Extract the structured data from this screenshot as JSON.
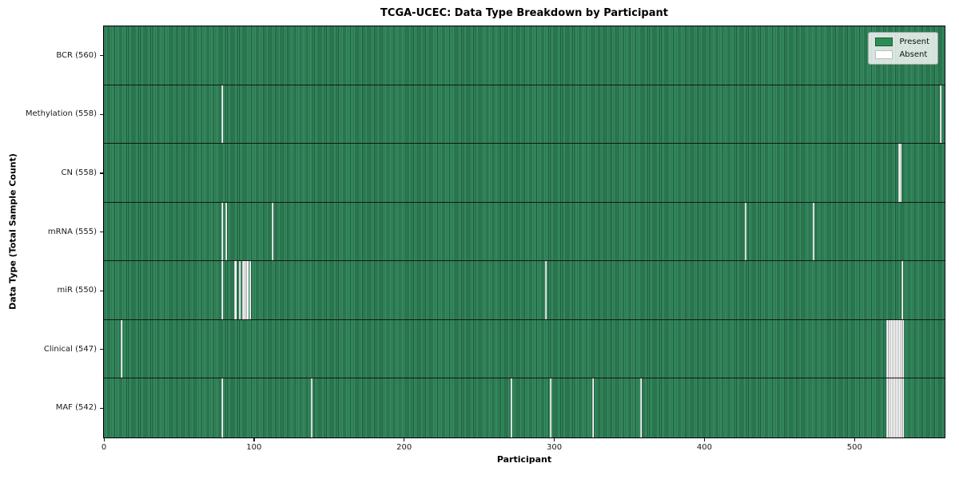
{
  "figure": {
    "title": "TCGA-UCEC: Data Type Breakdown by Participant",
    "xlabel": "Participant",
    "ylabel": "Data Type (Total Sample Count)",
    "legend": {
      "present_label": "Present",
      "absent_label": "Absent"
    },
    "colors": {
      "present": "#2e8b57",
      "present_stripe_dark": "#1d5737",
      "present_stripe_light": "#389065",
      "absent": "#ffffff",
      "plot_border": "#000000",
      "background": "#ffffff"
    }
  },
  "chart_data": {
    "type": "heatmap",
    "title": "TCGA-UCEC: Data Type Breakdown by Participant",
    "xlabel": "Participant",
    "ylabel": "Data Type (Total Sample Count)",
    "x_range": [
      0,
      560
    ],
    "x_ticks": [
      0,
      100,
      200,
      300,
      400,
      500
    ],
    "n_participants": 560,
    "grid": false,
    "legend_entries": [
      "Present",
      "Absent"
    ],
    "legend_position": "upper right",
    "cell_states": {
      "present": 1,
      "absent": 0
    },
    "rows": [
      {
        "data_type": "BCR",
        "label": "BCR (560)",
        "present_count": 560,
        "absent_count": 0,
        "absent_participants": []
      },
      {
        "data_type": "Methylation",
        "label": "Methylation (558)",
        "present_count": 558,
        "absent_count": 2,
        "absent_participants": [
          78,
          557
        ]
      },
      {
        "data_type": "CN",
        "label": "CN (558)",
        "present_count": 558,
        "absent_count": 2,
        "absent_participants": [
          529,
          530
        ]
      },
      {
        "data_type": "mRNA",
        "label": "mRNA (555)",
        "present_count": 555,
        "absent_count": 5,
        "absent_participants": [
          78,
          81,
          112,
          427,
          472
        ]
      },
      {
        "data_type": "miR",
        "label": "miR (550)",
        "present_count": 550,
        "absent_count": 10,
        "absent_participants": [
          78,
          87,
          90,
          92,
          93,
          94,
          95,
          97,
          294,
          531
        ]
      },
      {
        "data_type": "Clinical",
        "label": "Clinical (547)",
        "present_count": 547,
        "absent_count": 13,
        "absent_participants": [
          11,
          521,
          522,
          523,
          524,
          525,
          526,
          527,
          528,
          529,
          530,
          531,
          532
        ]
      },
      {
        "data_type": "MAF",
        "label": "MAF (542)",
        "present_count": 542,
        "absent_count": 18,
        "absent_participants": [
          78,
          138,
          271,
          297,
          325,
          357,
          521,
          522,
          523,
          524,
          525,
          526,
          527,
          528,
          529,
          530,
          531,
          532
        ]
      }
    ]
  }
}
